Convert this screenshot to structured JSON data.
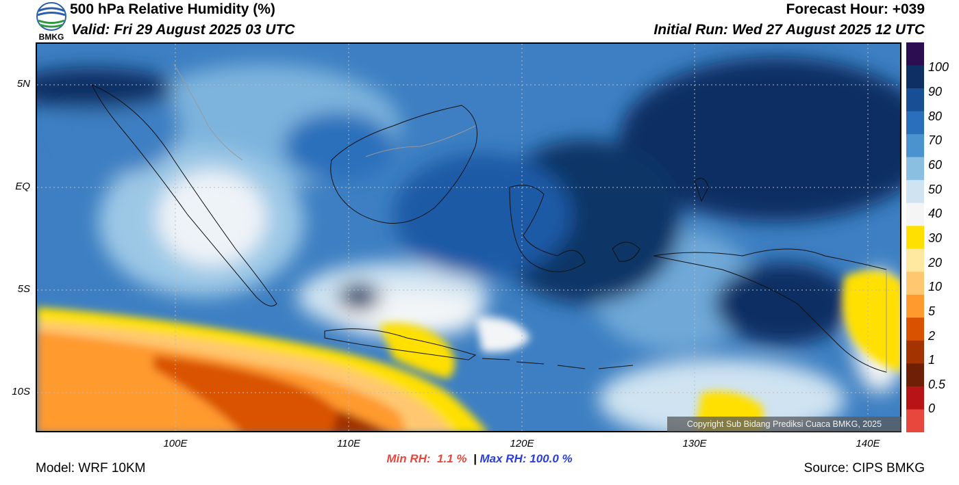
{
  "header": {
    "title": "500 hPa Relative Humidity (%)",
    "valid": "Valid: Fri 29 August 2025 03 UTC",
    "forecast_hour": "Forecast Hour: +039",
    "initial_run": "Initial Run: Wed 27 August 2025 12 UTC"
  },
  "logo": {
    "text": "BMKG"
  },
  "map": {
    "region": "Indonesia",
    "lon_range": [
      92,
      142
    ],
    "lat_range": [
      -12,
      7
    ],
    "lat_labels": [
      "5N",
      "EQ",
      "5S",
      "10S"
    ],
    "lon_labels": [
      "100E",
      "110E",
      "120E",
      "130E",
      "140E"
    ],
    "grid": true
  },
  "colorbar": {
    "labels": [
      "100",
      "90",
      "80",
      "70",
      "60",
      "50",
      "40",
      "30",
      "20",
      "10",
      "5",
      "2",
      "1",
      "0.5",
      "0"
    ],
    "colors": [
      "#2d0d52",
      "#0d2f63",
      "#174e94",
      "#2a6fbb",
      "#4b93cf",
      "#8bbfe2",
      "#cfe3f1",
      "#f5f5f5",
      "#ffe000",
      "#ffe9a0",
      "#ffc870",
      "#ff9a2e",
      "#d95200",
      "#a33300",
      "#6e1f05",
      "#b81317",
      "#e8473e"
    ]
  },
  "stats": {
    "min_rh_label": "Min RH:",
    "min_rh_value": "1.1 %",
    "separator": "|",
    "max_rh_label": "Max RH:",
    "max_rh_value": "100.0 %"
  },
  "footer": {
    "model": "Model: WRF 10KM",
    "source": "Source: CIPS BMKG",
    "copyright": "Copyright Sub Bidang Prediksi Cuaca BMKG, 2025"
  }
}
